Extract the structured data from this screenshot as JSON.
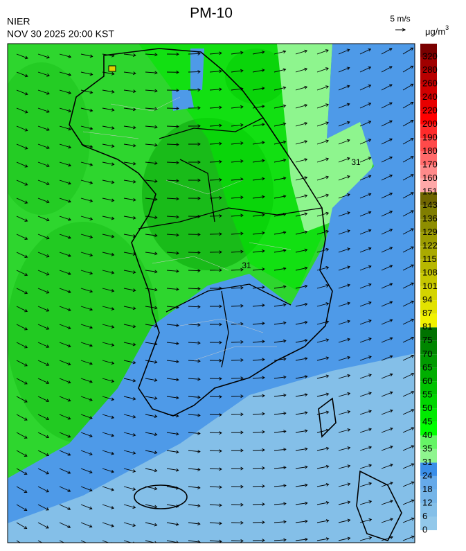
{
  "header": {
    "agency": "NIER",
    "timestamp": "NOV 30 2025 20:00 KST",
    "title": "PM-10"
  },
  "wind_scale": {
    "label": "5 m/s"
  },
  "colorbar": {
    "unit": {
      "base": "μg/m",
      "exponent": "3"
    },
    "ticks": [
      0,
      6,
      12,
      18,
      24,
      31,
      35,
      40,
      45,
      50,
      55,
      60,
      65,
      70,
      75,
      81,
      87,
      94,
      101,
      108,
      115,
      122,
      129,
      136,
      143,
      151,
      160,
      170,
      180,
      190,
      200,
      220,
      240,
      260,
      280,
      320
    ],
    "colors": [
      "#92c8ea",
      "#84bfe8",
      "#75b5e8",
      "#66aaea",
      "#3a8ee8",
      "#8ef58e",
      "#66f566",
      "#00ff00",
      "#00ea00",
      "#00d600",
      "#00c200",
      "#00ae00",
      "#009a00",
      "#008600",
      "#007200",
      "#f2f200",
      "#e2e200",
      "#d4d400",
      "#c6c600",
      "#b8b800",
      "#aaaa00",
      "#9c9c00",
      "#8e8e00",
      "#807e00",
      "#706600",
      "#ffa8a8",
      "#ff8a8a",
      "#ff6a6a",
      "#ff4a4a",
      "#ff2a2a",
      "#ff0000",
      "#e80000",
      "#d00000",
      "#b80000",
      "#a00000",
      "#7a0000"
    ]
  },
  "contour_labels": [
    31,
    31
  ]
}
